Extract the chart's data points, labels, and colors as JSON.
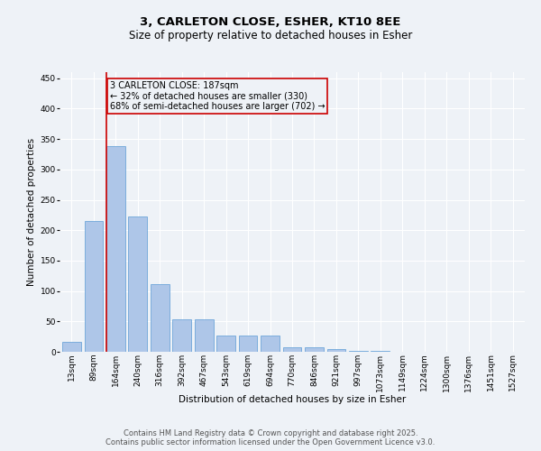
{
  "title1": "3, CARLETON CLOSE, ESHER, KT10 8EE",
  "title2": "Size of property relative to detached houses in Esher",
  "xlabel": "Distribution of detached houses by size in Esher",
  "ylabel": "Number of detached properties",
  "bar_color": "#aec6e8",
  "bar_edge_color": "#5b9bd5",
  "categories": [
    "13sqm",
    "89sqm",
    "164sqm",
    "240sqm",
    "316sqm",
    "392sqm",
    "467sqm",
    "543sqm",
    "619sqm",
    "694sqm",
    "770sqm",
    "846sqm",
    "921sqm",
    "997sqm",
    "1073sqm",
    "1149sqm",
    "1224sqm",
    "1300sqm",
    "1376sqm",
    "1451sqm",
    "1527sqm"
  ],
  "values": [
    16,
    215,
    338,
    222,
    112,
    54,
    54,
    26,
    26,
    26,
    8,
    7,
    5,
    2,
    1,
    0,
    0,
    0,
    0,
    0,
    0
  ],
  "ylim": [
    0,
    460
  ],
  "yticks": [
    0,
    50,
    100,
    150,
    200,
    250,
    300,
    350,
    400,
    450
  ],
  "property_line_color": "#cc0000",
  "annotation_text": "3 CARLETON CLOSE: 187sqm\n← 32% of detached houses are smaller (330)\n68% of semi-detached houses are larger (702) →",
  "annotation_box_color": "#cc0000",
  "annotation_text_color": "#000000",
  "footer1": "Contains HM Land Registry data © Crown copyright and database right 2025.",
  "footer2": "Contains public sector information licensed under the Open Government Licence v3.0.",
  "background_color": "#eef2f7",
  "grid_color": "#ffffff",
  "title_fontsize": 9.5,
  "subtitle_fontsize": 8.5,
  "axis_label_fontsize": 7.5,
  "tick_fontsize": 6.5,
  "annotation_fontsize": 7,
  "footer_fontsize": 6
}
